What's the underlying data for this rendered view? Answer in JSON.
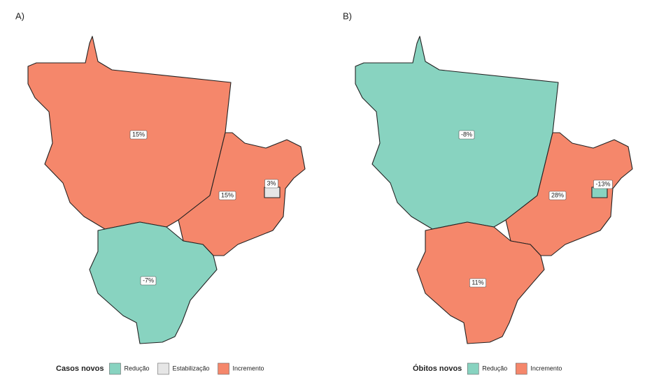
{
  "panels": [
    {
      "tag": "A)",
      "regions": [
        {
          "label": "15%",
          "class": "Incremento"
        },
        {
          "label": "15%",
          "class": "Incremento"
        },
        {
          "label": "3%",
          "class": "Estabilização"
        },
        {
          "label": "-7%",
          "class": "Redução"
        }
      ],
      "legend": {
        "title": "Casos novos",
        "items": [
          {
            "name": "Redução",
            "color": "#88d3c0"
          },
          {
            "name": "Estabilização",
            "color": "#e6e6e6"
          },
          {
            "name": "Incremento",
            "color": "#f5876b"
          }
        ]
      }
    },
    {
      "tag": "B)",
      "regions": [
        {
          "label": "-8%",
          "class": "Redução"
        },
        {
          "label": "28%",
          "class": "Incremento"
        },
        {
          "label": "-13%",
          "class": "Redução"
        },
        {
          "label": "11%",
          "class": "Incremento"
        }
      ],
      "legend": {
        "title": "Óbitos novos",
        "items": [
          {
            "name": "Redução",
            "color": "#88d3c0"
          },
          {
            "name": "Incremento",
            "color": "#f5876b"
          }
        ]
      }
    }
  ]
}
